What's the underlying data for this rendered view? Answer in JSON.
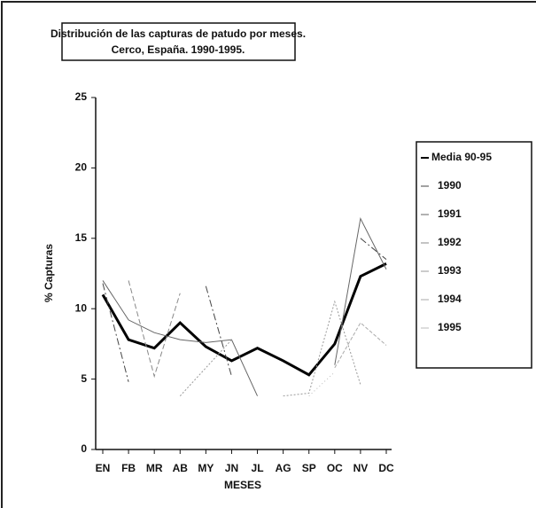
{
  "chart_data": {
    "type": "line",
    "title": [
      "Distribución de las capturas de patudo por meses.",
      "Cerco, España. 1990-1995."
    ],
    "y_label": "% Capturas",
    "x_label": "MESES",
    "categories": [
      "EN",
      "FB",
      "MR",
      "AB",
      "MY",
      "JN",
      "JL",
      "AG",
      "SP",
      "OC",
      "NV",
      "DC"
    ],
    "ylim": [
      0,
      25
    ],
    "yticks": [
      0,
      5,
      10,
      15,
      20,
      25
    ],
    "series": [
      {
        "name": "Media 90-95",
        "color": "#000000",
        "values": [
          11,
          7.8,
          7.2,
          9,
          7.3,
          6.3,
          7.2,
          6.3,
          5.3,
          7.5,
          12.3,
          13.2
        ]
      },
      {
        "name": "1990",
        "color": "#444444",
        "values": [
          11.8,
          4.8,
          null,
          null,
          11.6,
          5.2,
          null,
          null,
          null,
          null,
          15,
          13.5
        ]
      },
      {
        "name": "1991",
        "color": "#666666",
        "values": [
          12,
          9.2,
          8.3,
          7.8,
          7.6,
          7.8,
          3.8,
          null,
          null,
          6,
          16.4,
          12.8
        ]
      },
      {
        "name": "1992",
        "color": "#888888",
        "values": [
          null,
          12,
          5.2,
          11.1,
          null,
          null,
          null,
          null,
          null,
          null,
          null,
          null
        ]
      },
      {
        "name": "1993",
        "color": "#999999",
        "values": [
          null,
          null,
          null,
          3.8,
          5.8,
          7.8,
          null,
          3.8,
          4,
          10.5,
          4.6,
          null
        ]
      },
      {
        "name": "1994",
        "color": "#aaaaaa",
        "values": [
          null,
          null,
          null,
          null,
          null,
          null,
          null,
          null,
          null,
          5.8,
          9,
          7.4
        ]
      },
      {
        "name": "1995",
        "color": "#bbbbbb",
        "values": [
          null,
          9.5,
          null,
          null,
          null,
          null,
          null,
          null,
          3.8,
          5.5,
          null,
          null
        ]
      }
    ]
  }
}
